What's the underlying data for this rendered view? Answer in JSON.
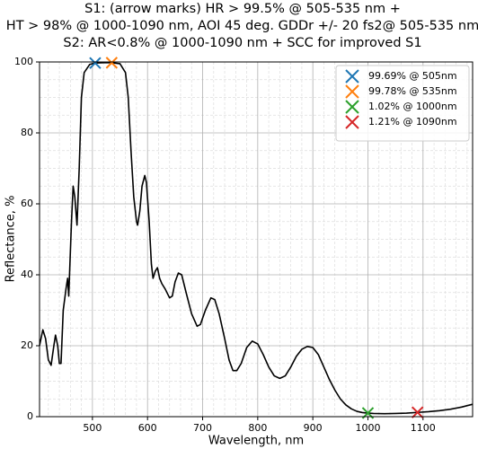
{
  "chart_data": {
    "type": "line",
    "title": [
      "S1: (arrow marks) HR > 99.5% @ 505-535 nm +",
      "HT > 98% @ 1000-1090 nm, AOI 45 deg. GDDr +/- 20 fs2@ 505-535 nm",
      "S2: AR<0.8% @ 1000-1090 nm + SCC for improved S1"
    ],
    "x_label": "Wavelength, nm",
    "y_label": "Reflectance, %",
    "xlim": [
      404,
      1190
    ],
    "ylim": [
      0,
      100
    ],
    "xticks": [
      500,
      600,
      700,
      800,
      900,
      1000,
      1100
    ],
    "yticks": [
      0,
      20,
      40,
      60,
      80,
      100
    ],
    "xminorticks": [
      420,
      440,
      460,
      480,
      520,
      540,
      560,
      580,
      620,
      640,
      660,
      680,
      720,
      740,
      760,
      780,
      820,
      840,
      860,
      880,
      920,
      940,
      960,
      980,
      1020,
      1040,
      1060,
      1080,
      1120,
      1140,
      1160,
      1180
    ],
    "yminorticks": [
      5,
      10,
      15,
      25,
      30,
      35,
      45,
      50,
      55,
      65,
      70,
      75,
      85,
      90,
      95
    ],
    "grid": true,
    "legend": "upper right",
    "line": {
      "color": "#000000",
      "x": [
        404,
        410,
        415,
        420,
        425,
        430,
        433,
        437,
        440,
        443,
        447,
        452,
        455,
        457,
        462,
        465,
        468,
        472,
        476,
        480,
        485,
        495,
        505,
        520,
        535,
        550,
        560,
        565,
        570,
        575,
        580,
        582,
        586,
        590,
        595,
        598,
        603,
        607,
        610,
        614,
        618,
        622,
        626,
        632,
        640,
        645,
        650,
        656,
        662,
        670,
        680,
        690,
        696,
        705,
        715,
        722,
        730,
        740,
        748,
        755,
        762,
        770,
        780,
        790,
        800,
        810,
        820,
        830,
        840,
        850,
        860,
        870,
        880,
        890,
        900,
        910,
        920,
        930,
        940,
        950,
        960,
        970,
        980,
        990,
        1000,
        1010,
        1030,
        1050,
        1070,
        1090,
        1110,
        1130,
        1150,
        1170,
        1190
      ],
      "values": [
        20,
        24.5,
        22,
        16,
        14.5,
        20,
        23,
        20,
        15,
        15,
        30,
        36,
        39,
        34,
        55,
        65,
        62,
        54,
        70,
        90,
        97,
        99.3,
        99.7,
        99.8,
        99.8,
        99.5,
        97,
        90,
        75,
        62,
        55,
        54,
        58,
        65,
        68,
        66,
        55,
        43,
        39,
        41,
        42,
        39,
        37.5,
        36,
        33.5,
        34,
        38,
        40.5,
        40,
        35,
        29,
        25.5,
        26,
        30,
        33.5,
        33,
        29,
        22,
        16,
        13,
        13,
        15,
        19.5,
        21.3,
        20.5,
        17.5,
        14,
        11.5,
        10.8,
        11.5,
        14,
        17,
        19,
        19.8,
        19.5,
        17.5,
        14,
        10.5,
        7.5,
        5,
        3.3,
        2.2,
        1.5,
        1.15,
        1.0,
        0.9,
        0.85,
        0.9,
        1.0,
        1.2,
        1.4,
        1.7,
        2.1,
        2.7,
        3.5
      ]
    },
    "markers": [
      {
        "name": "99.69% @ 505nm",
        "color": "#1f77b4",
        "x": 505,
        "value": 99.69
      },
      {
        "name": "99.78% @ 535nm",
        "color": "#ff7f0e",
        "x": 535,
        "value": 99.78
      },
      {
        "name": "1.02% @ 1000nm",
        "color": "#2ca02c",
        "x": 1000,
        "value": 1.02
      },
      {
        "name": "1.21% @ 1090nm",
        "color": "#d62728",
        "x": 1090,
        "value": 1.21
      }
    ]
  }
}
